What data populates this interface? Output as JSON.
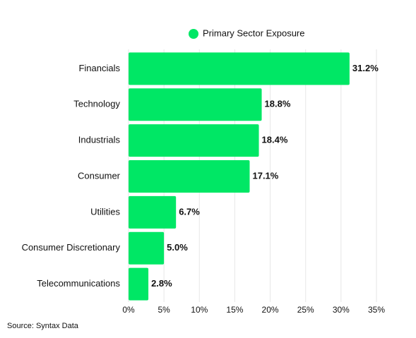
{
  "chart_data": {
    "type": "bar",
    "orientation": "horizontal",
    "categories": [
      "Financials",
      "Technology",
      "Industrials",
      "Consumer",
      "Utilities",
      "Consumer Discretionary",
      "Telecommunications"
    ],
    "series": [
      {
        "name": "Primary Sector Exposure",
        "color": "#00e765",
        "values": [
          31.2,
          18.8,
          18.4,
          17.1,
          6.7,
          5.0,
          2.8
        ],
        "value_labels": [
          "31.2%",
          "18.8%",
          "18.4%",
          "17.1%",
          "6.7%",
          "5.0%",
          "2.8%"
        ]
      }
    ],
    "xlim": [
      0,
      35
    ],
    "xticks": [
      {
        "value": 0,
        "label": "0%"
      },
      {
        "value": 5,
        "label": "5%"
      },
      {
        "value": 10,
        "label": "10%"
      },
      {
        "value": 15,
        "label": "15%"
      },
      {
        "value": 20,
        "label": "20%"
      },
      {
        "value": 25,
        "label": "25%"
      },
      {
        "value": 30,
        "label": "30%"
      },
      {
        "value": 35,
        "label": "35%"
      }
    ],
    "grid": true,
    "legend": "top",
    "source": "Source: Syntax Data"
  }
}
